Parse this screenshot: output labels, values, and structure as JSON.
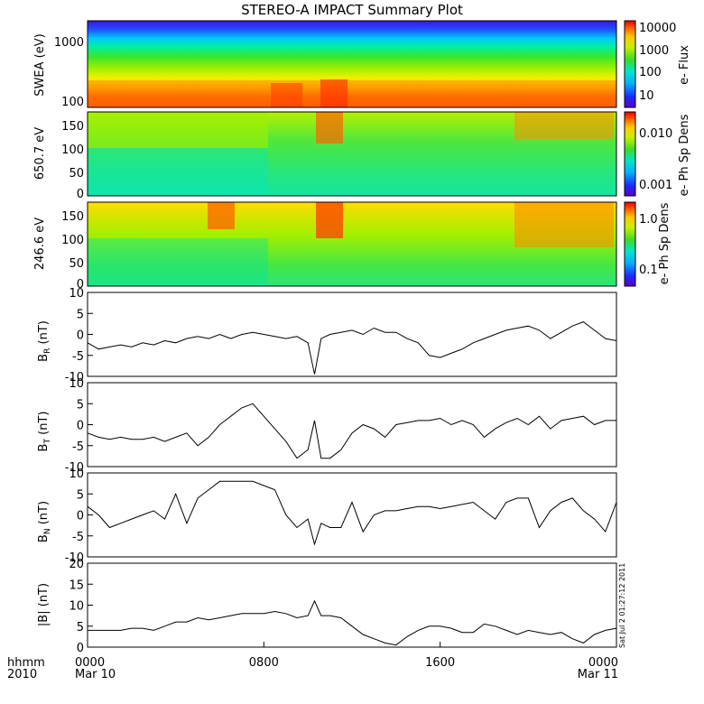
{
  "title": "STEREO-A IMPACT Summary Plot",
  "timestamp": "Sat Jul  2 01:27:12 2011",
  "footer": {
    "hhmm": "hhmm",
    "year": "2010"
  },
  "chart_data": [
    {
      "type": "heatmap",
      "ylabel": "SWEA (eV)",
      "yscale": "log",
      "yticks": [
        "1000",
        "100"
      ],
      "colorbar": {
        "label": "e- Flux",
        "scale": "log",
        "ticks": [
          "10000",
          "1000",
          "100",
          "10"
        ]
      },
      "description_values": {
        "energy_range_ev": [
          100,
          1500
        ]
      }
    },
    {
      "type": "heatmap",
      "ylabel": "650.7 eV",
      "yticks": [
        "150",
        "100",
        "50",
        "0"
      ],
      "ylim": [
        0,
        180
      ],
      "colorbar": {
        "label": "e- Ph Sp Dens",
        "scale": "log",
        "ticks": [
          "0.010",
          "0.001"
        ]
      }
    },
    {
      "type": "heatmap",
      "ylabel": "246.6 eV",
      "yticks": [
        "150",
        "100",
        "50",
        "0"
      ],
      "ylim": [
        0,
        180
      ],
      "colorbar": {
        "label": "e- Ph Sp Dens",
        "scale": "log",
        "ticks": [
          "1.0",
          "0.1"
        ]
      }
    },
    {
      "type": "line",
      "ylabel_main": "B",
      "ylabel_sub": "R",
      "ylabel_unit": "(nT)",
      "ylim": [
        -10,
        10
      ],
      "yticks": [
        "10",
        "5",
        "0",
        "-5",
        "-10"
      ],
      "x_hours": [
        0,
        0.5,
        1,
        1.5,
        2,
        2.5,
        3,
        3.5,
        4,
        4.5,
        5,
        5.5,
        6,
        6.5,
        7,
        7.5,
        8,
        8.5,
        9,
        9.5,
        10,
        10.3,
        10.6,
        11,
        11.5,
        12,
        12.5,
        13,
        13.5,
        14,
        14.5,
        15,
        15.5,
        16,
        16.5,
        17,
        17.5,
        18,
        18.5,
        19,
        19.5,
        20,
        20.5,
        21,
        21.5,
        22,
        22.5,
        23,
        23.5,
        24
      ],
      "values": [
        -2,
        -3.5,
        -3,
        -2.5,
        -3,
        -2,
        -2.5,
        -1.5,
        -2,
        -1,
        -0.5,
        -1,
        0,
        -1,
        0,
        0.5,
        0,
        -0.5,
        -1,
        -0.5,
        -2,
        -9.5,
        -1,
        0,
        0.5,
        1,
        0,
        1.5,
        0.5,
        0.5,
        -1,
        -2,
        -5,
        -5.5,
        -4.5,
        -3.5,
        -2,
        -1,
        0,
        1,
        1.5,
        2,
        1,
        -1,
        0.5,
        2,
        3,
        1,
        -1,
        -1.5
      ]
    },
    {
      "type": "line",
      "ylabel_main": "B",
      "ylabel_sub": "T",
      "ylabel_unit": "(nT)",
      "ylim": [
        -10,
        10
      ],
      "yticks": [
        "10",
        "5",
        "0",
        "-5",
        "-10"
      ],
      "x_hours": [
        0,
        0.5,
        1,
        1.5,
        2,
        2.5,
        3,
        3.5,
        4,
        4.5,
        5,
        5.5,
        6,
        6.5,
        7,
        7.5,
        8,
        8.5,
        9,
        9.5,
        10,
        10.3,
        10.6,
        11,
        11.5,
        12,
        12.5,
        13,
        13.5,
        14,
        14.5,
        15,
        15.5,
        16,
        16.5,
        17,
        17.5,
        18,
        18.5,
        19,
        19.5,
        20,
        20.5,
        21,
        21.5,
        22,
        22.5,
        23,
        23.5,
        24
      ],
      "values": [
        -2,
        -3,
        -3.5,
        -3,
        -3.5,
        -3.5,
        -3,
        -4,
        -3,
        -2,
        -5,
        -3,
        0,
        2,
        4,
        5,
        2,
        -1,
        -4,
        -8,
        -6,
        1,
        -8,
        -8,
        -6,
        -2,
        0,
        -1,
        -3,
        0,
        0.5,
        1,
        1,
        1.5,
        0,
        1,
        0,
        -3,
        -1,
        0.5,
        1.5,
        0,
        2,
        -1,
        1,
        1.5,
        2,
        0,
        1,
        1
      ]
    },
    {
      "type": "line",
      "ylabel_main": "B",
      "ylabel_sub": "N",
      "ylabel_unit": "(nT)",
      "ylim": [
        -10,
        10
      ],
      "yticks": [
        "10",
        "5",
        "0",
        "-5",
        "-10"
      ],
      "x_hours": [
        0,
        0.5,
        1,
        1.5,
        2,
        2.5,
        3,
        3.5,
        4,
        4.5,
        5,
        5.5,
        6,
        6.5,
        7,
        7.5,
        8,
        8.5,
        9,
        9.5,
        10,
        10.3,
        10.6,
        11,
        11.5,
        12,
        12.5,
        13,
        13.5,
        14,
        14.5,
        15,
        15.5,
        16,
        16.5,
        17,
        17.5,
        18,
        18.5,
        19,
        19.5,
        20,
        20.5,
        21,
        21.5,
        22,
        22.5,
        23,
        23.5,
        24
      ],
      "values": [
        2,
        0,
        -3,
        -2,
        -1,
        0,
        1,
        -1,
        5,
        -2,
        4,
        6,
        8,
        8,
        8,
        8,
        7,
        6,
        0,
        -3,
        -1,
        -7,
        -2,
        -3,
        -3,
        3,
        -4,
        0,
        1,
        1,
        1.5,
        2,
        2,
        1.5,
        2,
        2.5,
        3,
        1,
        -1,
        3,
        4,
        4,
        -3,
        1,
        3,
        4,
        1,
        -1,
        -4,
        3
      ]
    },
    {
      "type": "line",
      "ylabel_main": "|B|",
      "ylabel_unit": "(nT)",
      "ylim": [
        0,
        20
      ],
      "yticks": [
        "20",
        "15",
        "10",
        "5",
        "0"
      ],
      "x_hours": [
        0,
        0.5,
        1,
        1.5,
        2,
        2.5,
        3,
        3.5,
        4,
        4.5,
        5,
        5.5,
        6,
        6.5,
        7,
        7.5,
        8,
        8.5,
        9,
        9.5,
        10,
        10.3,
        10.6,
        11,
        11.5,
        12,
        12.5,
        13,
        13.5,
        14,
        14.5,
        15,
        15.5,
        16,
        16.5,
        17,
        17.5,
        18,
        18.5,
        19,
        19.5,
        20,
        20.5,
        21,
        21.5,
        22,
        22.5,
        23,
        23.5,
        24
      ],
      "values": [
        4,
        4,
        4,
        4,
        4.5,
        4.5,
        4,
        5,
        6,
        6,
        7,
        6.5,
        7,
        7.5,
        8,
        8,
        8,
        8.5,
        8,
        7,
        7.5,
        11,
        7.5,
        7.5,
        7,
        5,
        3,
        2,
        1,
        0.5,
        2.5,
        4,
        5,
        5,
        4.5,
        3.5,
        3.5,
        5.5,
        5,
        4,
        3,
        4,
        3.5,
        3,
        3.5,
        2,
        1,
        3,
        4,
        4.5
      ]
    }
  ],
  "xaxis": {
    "ticks": [
      {
        "hour": 0,
        "label": "0000",
        "date": "Mar 10"
      },
      {
        "hour": 8,
        "label": "0800",
        "date": ""
      },
      {
        "hour": 16,
        "label": "1600",
        "date": ""
      },
      {
        "hour": 24,
        "label": "0000",
        "date": "Mar 11"
      }
    ]
  }
}
